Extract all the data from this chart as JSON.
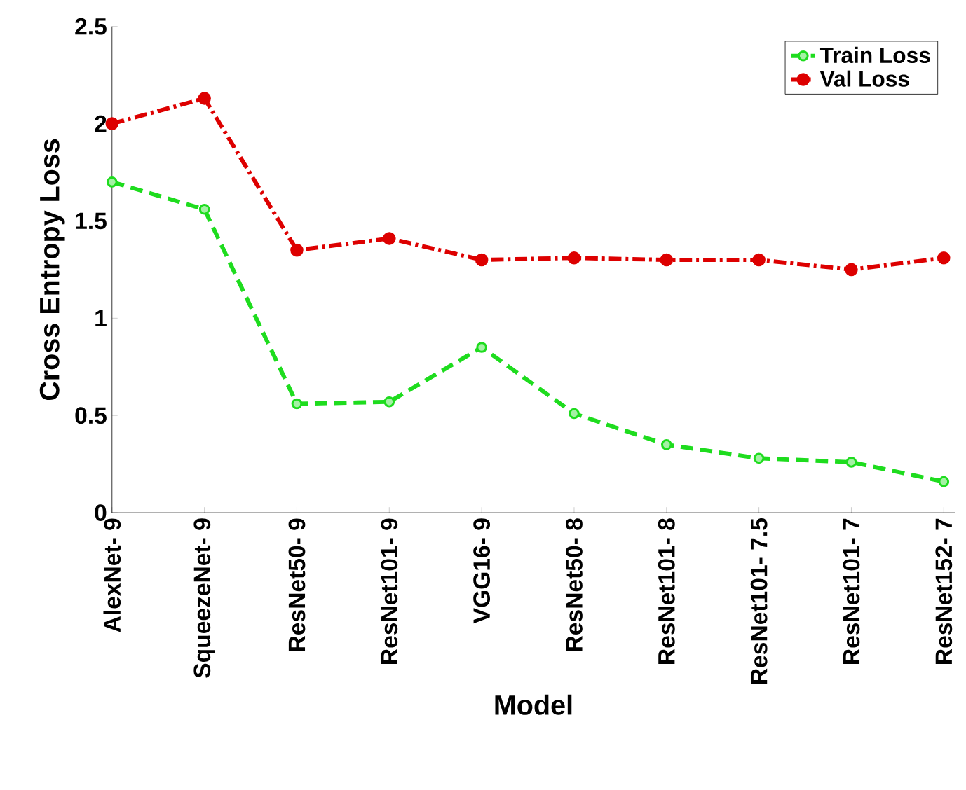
{
  "chart_data": {
    "type": "line",
    "xlabel": "Model",
    "ylabel": "Cross Entropy Loss",
    "categories": [
      "AlexNet- 9",
      "SqueezeNet- 9",
      "ResNet50- 9",
      "ResNet101- 9",
      "VGG16- 9",
      "ResNet50- 8",
      "ResNet101- 8",
      "ResNet101- 7.5",
      "ResNet101- 7",
      "ResNet152- 7"
    ],
    "series": [
      {
        "name": "Train Loss",
        "color": "#1edc1e",
        "marker": "circle",
        "line_style": "dashed",
        "values": [
          1.7,
          1.56,
          0.56,
          0.57,
          0.85,
          0.51,
          0.35,
          0.28,
          0.26,
          0.16
        ]
      },
      {
        "name": "Val Loss",
        "color": "#dd0000",
        "marker": "circle",
        "line_style": "dashdot",
        "values": [
          2.0,
          2.13,
          1.35,
          1.41,
          1.3,
          1.31,
          1.3,
          1.3,
          1.25,
          1.31
        ]
      }
    ],
    "ylim": [
      0,
      2.5
    ],
    "yticks": [
      0,
      0.5,
      1,
      1.5,
      2,
      2.5
    ],
    "grid": false,
    "legend": "top right"
  }
}
